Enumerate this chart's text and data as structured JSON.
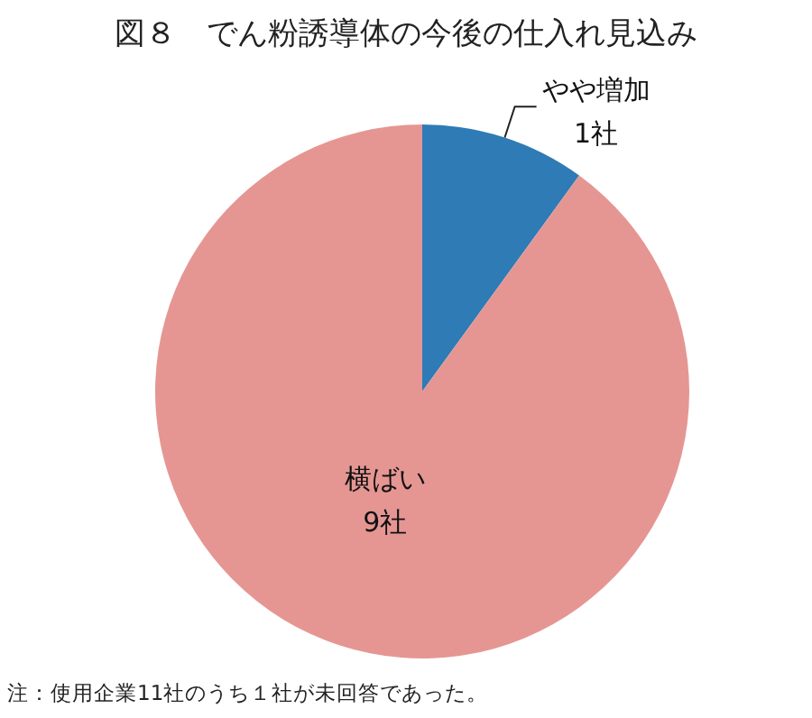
{
  "chart_data": {
    "type": "pie",
    "title": "図８　でん粉誘導体の今後の仕入れ見込み",
    "categories": [
      "やや増加",
      "横ばい"
    ],
    "values": [
      1,
      9
    ],
    "colors": [
      "#2e7bb6",
      "#e59693"
    ],
    "value_labels": [
      "1社",
      "9社"
    ],
    "annotations": [
      "注：使用企業11社のうち１社が未回答であった。"
    ]
  }
}
